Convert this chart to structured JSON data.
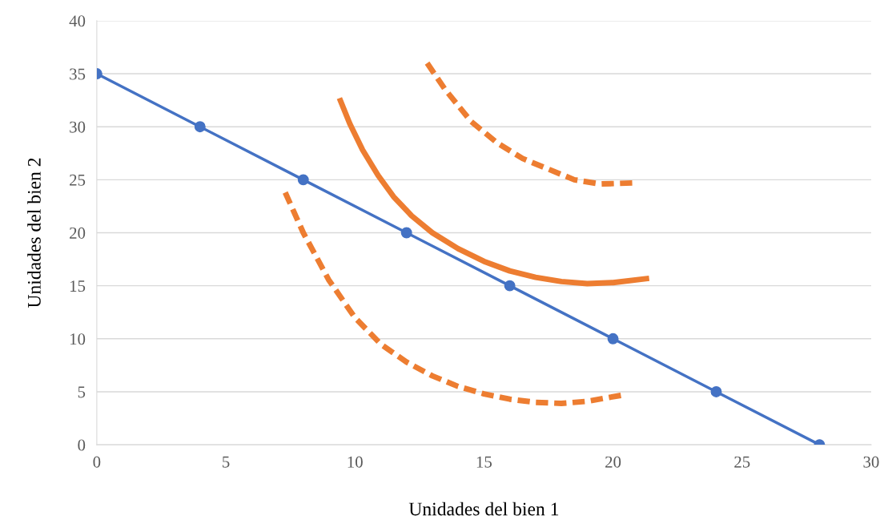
{
  "chart_data": {
    "type": "line",
    "xlabel": "Unidades del bien 1",
    "ylabel": "Unidades del bien 2",
    "xlim": [
      0,
      30
    ],
    "xticks": [
      0,
      5,
      10,
      15,
      20,
      25,
      30
    ],
    "ylim": [
      0,
      40
    ],
    "yticks": [
      0,
      5,
      10,
      15,
      20,
      25,
      30,
      35,
      40
    ],
    "grid": "y",
    "series": [
      {
        "color": "#4472c4",
        "marker": "circle",
        "line_style": "solid",
        "x": [
          0,
          4,
          8,
          12,
          16,
          20,
          24,
          28
        ],
        "values": [
          35,
          30,
          25,
          20,
          15,
          10,
          5,
          0
        ]
      },
      {
        "color": "#ed7d31",
        "marker": "none",
        "line_style": "solid",
        "x": [
          9.4,
          9.8,
          10.3,
          10.9,
          11.5,
          12.2,
          13,
          14,
          15,
          16,
          17,
          18,
          19,
          20,
          21.4
        ],
        "values": [
          32.7,
          30.3,
          27.8,
          25.4,
          23.4,
          21.6,
          20,
          18.5,
          17.3,
          16.4,
          15.8,
          15.4,
          15.2,
          15.3,
          15.7
        ]
      },
      {
        "color": "#ed7d31",
        "marker": "none",
        "line_style": "dashed",
        "x": [
          12.8,
          13.5,
          14.5,
          15.5,
          16.5,
          17.5,
          18.5,
          19.5,
          20.8
        ],
        "values": [
          36,
          33.5,
          30.5,
          28.5,
          27,
          26,
          25,
          24.6,
          24.7
        ]
      },
      {
        "color": "#ed7d31",
        "marker": "none",
        "line_style": "dashed",
        "x": [
          7.3,
          8,
          9,
          10,
          11,
          12,
          13,
          14,
          15,
          16,
          17,
          18,
          19,
          20.4
        ],
        "values": [
          23.8,
          20,
          15.5,
          12,
          9.5,
          7.8,
          6.5,
          5.5,
          4.8,
          4.3,
          4,
          3.9,
          4.1,
          4.7
        ]
      }
    ]
  }
}
